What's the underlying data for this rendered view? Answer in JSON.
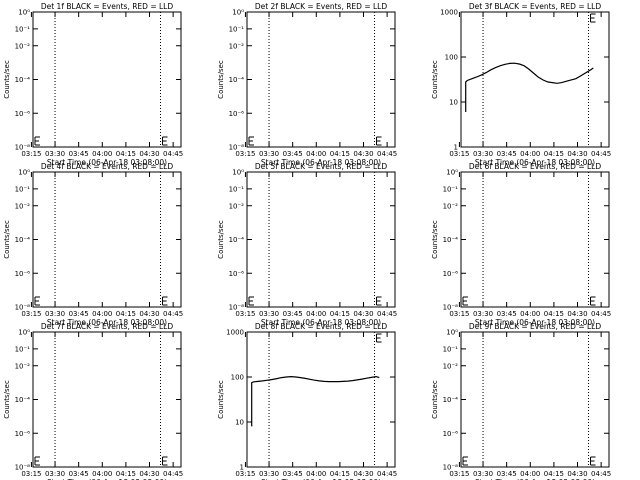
{
  "chart_data": [
    {
      "type": "line",
      "title": "Det 1f BLACK = Events, RED = LLD",
      "xlabel": "Start Time (06-Apr-18 03:08:00)",
      "ylabel": "Counts/sec",
      "scale": "log",
      "ylim": [
        1e-08,
        1
      ],
      "yticks": [
        "10⁻⁸",
        "10⁻⁶",
        "10⁻⁴",
        "10⁻²",
        "10⁻¹",
        "10⁰"
      ],
      "ytick_values": [
        1e-08,
        1e-06,
        0.0001,
        0.01,
        0.1,
        1
      ],
      "xticks": [
        "03:15",
        "03:30",
        "03:45",
        "04:00",
        "04:15",
        "04:30",
        "04:45"
      ],
      "xlim_min": [
        8,
        102
      ],
      "vlines_min": [
        22,
        89,
        102
      ],
      "error_markers_min": [
        8,
        89
      ],
      "series": []
    },
    {
      "type": "line",
      "title": "Det 2f BLACK = Events, RED = LLD",
      "xlabel": "Start Time (06-Apr-18 03:08:00)",
      "ylabel": "Counts/sec",
      "scale": "log",
      "ylim": [
        1e-08,
        1
      ],
      "yticks": [
        "10⁻⁸",
        "10⁻⁶",
        "10⁻⁴",
        "10⁻²",
        "10⁻¹",
        "10⁰"
      ],
      "ytick_values": [
        1e-08,
        1e-06,
        0.0001,
        0.01,
        0.1,
        1
      ],
      "xticks": [
        "03:15",
        "03:30",
        "03:45",
        "04:00",
        "04:15",
        "04:30",
        "04:45"
      ],
      "xlim_min": [
        8,
        102
      ],
      "vlines_min": [
        22,
        89,
        102
      ],
      "error_markers_min": [
        8,
        89
      ],
      "series": []
    },
    {
      "type": "line",
      "title": "Det 3f BLACK = Events, RED = LLD",
      "xlabel": "Start Time (06-Apr-18 03:08:00)",
      "ylabel": "Counts/sec",
      "scale": "log",
      "ylim": [
        1,
        1000
      ],
      "yticks": [
        "1",
        "10",
        "100",
        "1000"
      ],
      "ytick_values": [
        1,
        10,
        100,
        1000
      ],
      "xticks": [
        "03:15",
        "03:30",
        "03:45",
        "04:00",
        "04:15",
        "04:30",
        "04:45"
      ],
      "xlim_min": [
        8,
        102
      ],
      "vlines_min": [
        22,
        89,
        102
      ],
      "error_markers_min": [
        89
      ],
      "series": [
        {
          "x": [
            11,
            11,
            12,
            15,
            18,
            21,
            24,
            27,
            30,
            33,
            36,
            39,
            42,
            45,
            48,
            51,
            54,
            57,
            60,
            63,
            66,
            69,
            72,
            75,
            78,
            81,
            84,
            87,
            90,
            92
          ],
          "y": [
            6,
            28,
            30,
            33,
            36,
            40,
            45,
            52,
            58,
            64,
            69,
            72,
            73,
            70,
            64,
            54,
            44,
            36,
            31,
            28,
            27,
            26,
            27,
            29,
            31,
            33,
            38,
            44,
            51,
            57
          ]
        }
      ]
    },
    {
      "type": "line",
      "title": "Det 4f BLACK = Events, RED = LLD",
      "xlabel": "Start Time (06-Apr-18 03:08:00)",
      "ylabel": "Counts/sec",
      "scale": "log",
      "ylim": [
        1e-08,
        1
      ],
      "yticks": [
        "10⁻⁸",
        "10⁻⁶",
        "10⁻⁴",
        "10⁻²",
        "10⁻¹",
        "10⁰"
      ],
      "ytick_values": [
        1e-08,
        1e-06,
        0.0001,
        0.01,
        0.1,
        1
      ],
      "xticks": [
        "03:15",
        "03:30",
        "03:45",
        "04:00",
        "04:15",
        "04:30",
        "04:45"
      ],
      "xlim_min": [
        8,
        102
      ],
      "vlines_min": [
        22,
        89,
        102
      ],
      "error_markers_min": [
        8,
        89
      ],
      "series": []
    },
    {
      "type": "line",
      "title": "Det 5f BLACK = Events, RED = LLD",
      "xlabel": "Start Time (06-Apr-18 03:08:00)",
      "ylabel": "Counts/sec",
      "scale": "log",
      "ylim": [
        1e-08,
        1
      ],
      "yticks": [
        "10⁻⁸",
        "10⁻⁶",
        "10⁻⁴",
        "10⁻²",
        "10⁻¹",
        "10⁰"
      ],
      "ytick_values": [
        1e-08,
        1e-06,
        0.0001,
        0.01,
        0.1,
        1
      ],
      "xticks": [
        "03:15",
        "03:30",
        "03:45",
        "04:00",
        "04:15",
        "04:30",
        "04:45"
      ],
      "xlim_min": [
        8,
        102
      ],
      "vlines_min": [
        22,
        89,
        102
      ],
      "error_markers_min": [
        8,
        89
      ],
      "series": []
    },
    {
      "type": "line",
      "title": "Det 6f BLACK = Events, RED = LLD",
      "xlabel": "Start Time (06-Apr-18 03:08:00)",
      "ylabel": "Counts/sec",
      "scale": "log",
      "ylim": [
        1e-08,
        1
      ],
      "yticks": [
        "10⁻⁸",
        "10⁻⁶",
        "10⁻⁴",
        "10⁻²",
        "10⁻¹",
        "10⁰"
      ],
      "ytick_values": [
        1e-08,
        1e-06,
        0.0001,
        0.01,
        0.1,
        1
      ],
      "xticks": [
        "03:15",
        "03:30",
        "03:45",
        "04:00",
        "04:15",
        "04:30",
        "04:45"
      ],
      "xlim_min": [
        8,
        102
      ],
      "vlines_min": [
        22,
        89,
        102
      ],
      "error_markers_min": [
        8,
        89
      ],
      "series": []
    },
    {
      "type": "line",
      "title": "Det 7f BLACK = Events, RED = LLD",
      "xlabel": "Start Time (06-Apr-18 03:08:00)",
      "ylabel": "Counts/sec",
      "scale": "log",
      "ylim": [
        1e-08,
        1
      ],
      "yticks": [
        "10⁻⁸",
        "10⁻⁶",
        "10⁻⁴",
        "10⁻²",
        "10⁻¹",
        "10⁰"
      ],
      "ytick_values": [
        1e-08,
        1e-06,
        0.0001,
        0.01,
        0.1,
        1
      ],
      "xticks": [
        "03:15",
        "03:30",
        "03:45",
        "04:00",
        "04:15",
        "04:30",
        "04:45"
      ],
      "xlim_min": [
        8,
        102
      ],
      "vlines_min": [
        22,
        89,
        102
      ],
      "error_markers_min": [
        8,
        89
      ],
      "series": []
    },
    {
      "type": "line",
      "title": "Det 8f BLACK = Events, RED = LLD",
      "xlabel": "Start Time (06-Apr-18 03:08:00)",
      "ylabel": "Counts/sec",
      "scale": "log",
      "ylim": [
        1,
        1000
      ],
      "yticks": [
        "1",
        "10",
        "100",
        "1000"
      ],
      "ytick_values": [
        1,
        10,
        100,
        1000
      ],
      "xticks": [
        "03:15",
        "03:30",
        "03:45",
        "04:00",
        "04:15",
        "04:30",
        "04:45"
      ],
      "xlim_min": [
        8,
        102
      ],
      "vlines_min": [
        22,
        89,
        102
      ],
      "error_markers_min": [
        89
      ],
      "series": [
        {
          "x": [
            11,
            11,
            12,
            15,
            18,
            21,
            24,
            27,
            30,
            33,
            36,
            39,
            42,
            45,
            48,
            51,
            54,
            57,
            60,
            63,
            66,
            69,
            72,
            75,
            78,
            81,
            84,
            87,
            90,
            92
          ],
          "y": [
            8,
            75,
            78,
            80,
            82,
            85,
            88,
            92,
            97,
            100,
            102,
            100,
            97,
            93,
            89,
            85,
            82,
            80,
            79,
            79,
            79,
            80,
            81,
            83,
            86,
            90,
            94,
            98,
            102,
            97
          ]
        }
      ]
    },
    {
      "type": "line",
      "title": "Det 9f BLACK = Events, RED = LLD",
      "xlabel": "Start Time (06-Apr-18 03:08:00)",
      "ylabel": "Counts/sec",
      "scale": "log",
      "ylim": [
        1e-08,
        1
      ],
      "yticks": [
        "10⁻⁸",
        "10⁻⁶",
        "10⁻⁴",
        "10⁻²",
        "10⁻¹",
        "10⁰"
      ],
      "ytick_values": [
        1e-08,
        1e-06,
        0.0001,
        0.01,
        0.1,
        1
      ],
      "xticks": [
        "03:15",
        "03:30",
        "03:45",
        "04:00",
        "04:15",
        "04:30",
        "04:45"
      ],
      "xlim_min": [
        8,
        102
      ],
      "vlines_min": [
        22,
        89,
        102
      ],
      "error_markers_min": [
        8,
        89
      ],
      "series": []
    }
  ]
}
